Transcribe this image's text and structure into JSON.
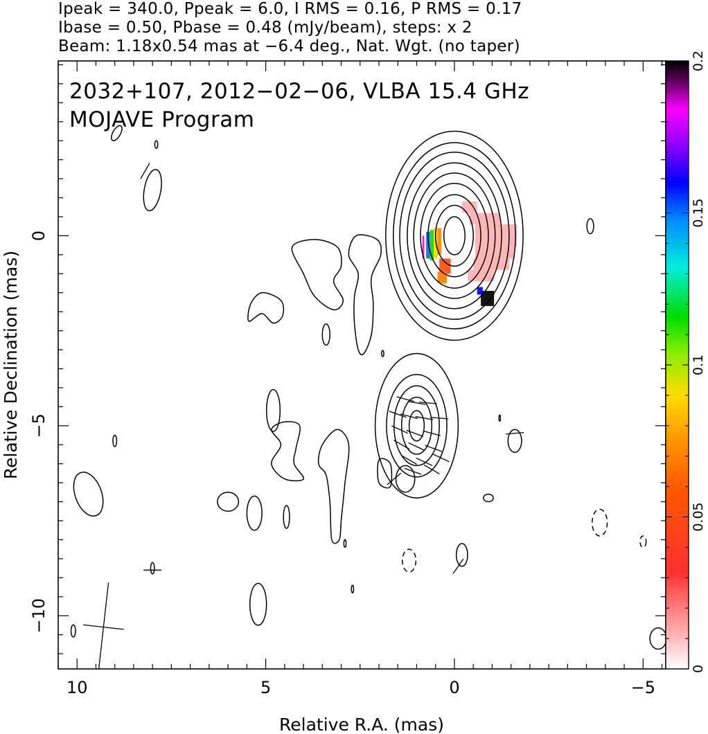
{
  "header": {
    "line1": "Ipeak = 340.0, Ppeak = 6.0, I RMS = 0.16, P RMS = 0.17",
    "line2": "Ibase = 0.50, Pbase = 0.48 (mJy/beam), steps: x 2",
    "line3": "Beam: 1.18x0.54 mas at −6.4 deg., Nat. Wgt. (no taper)"
  },
  "chart_data": {
    "type": "heatmap",
    "title": "2032+107, 2012−02−06, VLBA 15.4 GHz",
    "subtitle": "MOJAVE Program",
    "xlabel": "Relative R.A. (mas)",
    "ylabel": "Relative Declination (mas)",
    "xlim": [
      10.5,
      -5.6
    ],
    "ylim": [
      -11.4,
      4.6
    ],
    "x_ticks": [
      10,
      5,
      0,
      -5
    ],
    "x_tick_labels": [
      "10",
      "5",
      "0",
      "−5"
    ],
    "y_ticks": [
      0,
      -5,
      -10
    ],
    "y_tick_labels": [
      "0",
      "−5",
      "−10"
    ],
    "colorbar": {
      "min": 0,
      "max": 0.2,
      "ticks": [
        0,
        0.05,
        0.1,
        0.15,
        0.2
      ],
      "tick_labels": [
        "0",
        "0.05",
        "0.1",
        "0.15",
        "0.2"
      ]
    },
    "core": {
      "center": [
        0,
        0
      ],
      "contour_radii": [
        [
          0.28,
          0.5
        ],
        [
          0.5,
          0.8
        ],
        [
          0.7,
          1.08
        ],
        [
          0.9,
          1.38
        ],
        [
          1.08,
          1.65
        ],
        [
          1.25,
          1.92
        ],
        [
          1.45,
          2.2
        ],
        [
          1.62,
          2.45
        ],
        [
          1.82,
          2.75
        ]
      ]
    },
    "jet_component": {
      "center": [
        1.0,
        -5.0
      ],
      "contour_radii": [
        [
          0.2,
          0.4
        ],
        [
          0.4,
          0.75
        ],
        [
          0.6,
          1.05
        ],
        [
          0.8,
          1.35
        ],
        [
          1.1,
          1.9
        ]
      ]
    },
    "polarization_map": [
      {
        "x": -0.2,
        "y": 0.9,
        "w": 0.4,
        "h": 0.3,
        "v": 0.012
      },
      {
        "x": -0.4,
        "y": 0.6,
        "w": 0.8,
        "h": 0.3,
        "v": 0.012
      },
      {
        "x": -0.55,
        "y": 0.3,
        "w": 1.1,
        "h": 0.3,
        "v": 0.012
      },
      {
        "x": -0.55,
        "y": 0.0,
        "w": 1.1,
        "h": 0.3,
        "v": 0.012
      },
      {
        "x": -0.55,
        "y": -0.3,
        "w": 1.05,
        "h": 0.3,
        "v": 0.012
      },
      {
        "x": -0.5,
        "y": -0.6,
        "w": 0.95,
        "h": 0.3,
        "v": 0.012
      },
      {
        "x": -0.35,
        "y": -0.9,
        "w": 0.7,
        "h": 0.3,
        "v": 0.012
      },
      {
        "x": 0.45,
        "y": 0.2,
        "w": 0.1,
        "h": 0.7,
        "v": 0.07
      },
      {
        "x": 0.55,
        "y": 0.2,
        "w": 0.1,
        "h": 0.8,
        "v": 0.09
      },
      {
        "x": 0.65,
        "y": 0.15,
        "w": 0.1,
        "h": 0.8,
        "v": 0.115
      },
      {
        "x": 0.75,
        "y": 0.1,
        "w": 0.1,
        "h": 0.7,
        "v": 0.15
      },
      {
        "x": 0.85,
        "y": 0.0,
        "w": 0.05,
        "h": 0.6,
        "v": 0.185
      },
      {
        "x": 0.4,
        "y": -0.6,
        "w": 0.3,
        "h": 0.4,
        "v": 0.05
      },
      {
        "x": 0.45,
        "y": -0.95,
        "w": 0.25,
        "h": 0.3,
        "v": 0.07
      },
      {
        "x": -0.7,
        "y": -1.45,
        "w": 0.35,
        "h": 0.4,
        "v": 0.2
      },
      {
        "x": -0.6,
        "y": -1.35,
        "w": 0.15,
        "h": 0.2,
        "v": 0.16
      }
    ],
    "evpa_ticks": [
      {
        "x": 1.3,
        "y": -4.3,
        "angle": -15
      },
      {
        "x": 1.0,
        "y": -4.4,
        "angle": -10
      },
      {
        "x": 0.7,
        "y": -4.4,
        "angle": -5
      },
      {
        "x": 1.5,
        "y": -4.7,
        "angle": -20
      },
      {
        "x": 1.2,
        "y": -4.75,
        "angle": -15
      },
      {
        "x": 0.8,
        "y": -4.8,
        "angle": -10
      },
      {
        "x": 0.4,
        "y": -4.8,
        "angle": -5
      },
      {
        "x": 1.45,
        "y": -5.1,
        "angle": -25
      },
      {
        "x": 1.05,
        "y": -5.2,
        "angle": -20
      },
      {
        "x": 0.6,
        "y": -5.2,
        "angle": -15
      },
      {
        "x": 1.4,
        "y": -5.5,
        "angle": -30
      },
      {
        "x": 1.0,
        "y": -5.55,
        "angle": -25
      },
      {
        "x": 0.55,
        "y": -5.6,
        "angle": -20
      },
      {
        "x": 1.2,
        "y": -5.9,
        "angle": -30
      },
      {
        "x": 0.8,
        "y": -5.95,
        "angle": -25
      },
      {
        "x": 0.35,
        "y": -5.85,
        "angle": -25
      },
      {
        "x": 1.1,
        "y": -6.2,
        "angle": -20
      },
      {
        "x": 0.6,
        "y": -6.15,
        "angle": -30
      },
      {
        "x": 1.6,
        "y": -6.4,
        "angle": 40
      },
      {
        "x": 8.2,
        "y": 1.7,
        "angle": 60
      },
      {
        "x": -1.6,
        "y": -5.2,
        "angle": 5
      },
      {
        "x": 8.0,
        "y": -8.8,
        "angle": 0
      },
      {
        "x": -0.1,
        "y": -8.7,
        "angle": 55
      }
    ],
    "beam": {
      "x": 9.3,
      "y": -10.3,
      "major": 1.18,
      "minor": 0.54,
      "pa": -6.4
    },
    "noise_contours": [
      {
        "x": 8.0,
        "y": 1.2,
        "rx": 0.22,
        "ry": 0.55,
        "rot": 10,
        "dashed": false
      },
      {
        "x": 8.95,
        "y": 2.7,
        "rx": 0.1,
        "ry": 0.22,
        "rot": 30,
        "dashed": false
      },
      {
        "x": 7.9,
        "y": 2.4,
        "rx": 0.04,
        "ry": 0.1,
        "rot": 0,
        "dashed": false
      },
      {
        "x": -3.6,
        "y": 0.25,
        "rx": 0.09,
        "ry": 0.2,
        "rot": 0,
        "dashed": false
      },
      {
        "x": 3.4,
        "y": -2.6,
        "rx": 0.1,
        "ry": 0.28,
        "rot": 0,
        "dashed": false
      },
      {
        "x": 1.9,
        "y": -3.1,
        "rx": 0.03,
        "ry": 0.08,
        "rot": 0,
        "dashed": false
      },
      {
        "x": 9.0,
        "y": -5.4,
        "rx": 0.05,
        "ry": 0.15,
        "rot": 0,
        "dashed": false
      },
      {
        "x": 9.7,
        "y": -6.8,
        "rx": 0.35,
        "ry": 0.6,
        "rot": -20,
        "dashed": false
      },
      {
        "x": 4.8,
        "y": -4.6,
        "rx": 0.18,
        "ry": 0.55,
        "rot": 0,
        "dashed": false
      },
      {
        "x": 6.0,
        "y": -7.0,
        "rx": 0.28,
        "ry": 0.25,
        "rot": 0,
        "dashed": false
      },
      {
        "x": 5.3,
        "y": -7.3,
        "rx": 0.2,
        "ry": 0.45,
        "rot": 0,
        "dashed": false
      },
      {
        "x": 4.45,
        "y": -7.4,
        "rx": 0.08,
        "ry": 0.3,
        "rot": 0,
        "dashed": false
      },
      {
        "x": 2.9,
        "y": -8.1,
        "rx": 0.03,
        "ry": 0.1,
        "rot": 0,
        "dashed": false
      },
      {
        "x": 8.0,
        "y": -8.75,
        "rx": 0.05,
        "ry": 0.15,
        "rot": 0,
        "dashed": false
      },
      {
        "x": 10.1,
        "y": -10.4,
        "rx": 0.06,
        "ry": 0.16,
        "rot": 0,
        "dashed": false
      },
      {
        "x": 2.7,
        "y": -9.3,
        "rx": 0.03,
        "ry": 0.1,
        "rot": 0,
        "dashed": false
      },
      {
        "x": 5.2,
        "y": -9.7,
        "rx": 0.22,
        "ry": 0.55,
        "rot": 0,
        "dashed": false
      },
      {
        "x": 1.3,
        "y": -6.4,
        "rx": 0.25,
        "ry": 0.35,
        "rot": 0,
        "dashed": false
      },
      {
        "x": -0.2,
        "y": -8.4,
        "rx": 0.15,
        "ry": 0.3,
        "rot": 0,
        "dashed": false
      },
      {
        "x": -1.6,
        "y": -5.4,
        "rx": 0.18,
        "ry": 0.3,
        "rot": 0,
        "dashed": false
      },
      {
        "x": -1.2,
        "y": -4.8,
        "rx": 0.02,
        "ry": 0.08,
        "rot": 0,
        "dashed": false
      },
      {
        "x": -0.9,
        "y": -6.9,
        "rx": 0.13,
        "ry": 0.1,
        "rot": 0,
        "dashed": false
      },
      {
        "x": -5.4,
        "y": -10.6,
        "rx": 0.22,
        "ry": 0.28,
        "rot": 0,
        "dashed": false
      },
      {
        "x": 1.2,
        "y": -8.55,
        "rx": 0.18,
        "ry": 0.3,
        "rot": 0,
        "dashed": true
      },
      {
        "x": -3.85,
        "y": -7.55,
        "rx": 0.2,
        "ry": 0.35,
        "rot": 0,
        "dashed": true
      },
      {
        "x": -5.0,
        "y": -8.05,
        "rx": 0.08,
        "ry": 0.15,
        "rot": 0,
        "dashed": true
      }
    ],
    "irregular_contours": [
      [
        [
          4.0,
          -1.0
        ],
        [
          4.3,
          -0.3
        ],
        [
          3.7,
          -0.1
        ],
        [
          3.1,
          -0.3
        ],
        [
          3.0,
          -0.8
        ],
        [
          3.2,
          -1.2
        ],
        [
          2.95,
          -1.7
        ],
        [
          3.2,
          -1.95
        ],
        [
          3.7,
          -1.6
        ]
      ],
      [
        [
          2.05,
          -0.1
        ],
        [
          2.6,
          0.0
        ],
        [
          2.8,
          -0.5
        ],
        [
          2.55,
          -1.0
        ],
        [
          2.65,
          -1.6
        ],
        [
          2.65,
          -2.3
        ],
        [
          2.55,
          -3.0
        ],
        [
          2.4,
          -3.1
        ],
        [
          2.2,
          -2.6
        ],
        [
          2.15,
          -1.8
        ],
        [
          2.2,
          -1.1
        ],
        [
          1.95,
          -0.5
        ]
      ],
      [
        [
          5.4,
          -1.8
        ],
        [
          5.1,
          -1.5
        ],
        [
          4.6,
          -1.7
        ],
        [
          4.55,
          -2.1
        ],
        [
          4.8,
          -2.3
        ],
        [
          5.1,
          -2.05
        ],
        [
          5.45,
          -2.25
        ]
      ],
      [
        [
          4.2,
          -5.6
        ],
        [
          4.1,
          -5.0
        ],
        [
          4.5,
          -4.9
        ],
        [
          4.85,
          -5.1
        ],
        [
          4.6,
          -5.5
        ],
        [
          4.85,
          -6.0
        ],
        [
          4.5,
          -6.4
        ],
        [
          4.0,
          -6.4
        ],
        [
          4.25,
          -6.0
        ]
      ],
      [
        [
          3.4,
          -6.3
        ],
        [
          3.6,
          -6.0
        ],
        [
          3.5,
          -5.5
        ],
        [
          3.1,
          -5.1
        ],
        [
          2.8,
          -5.5
        ],
        [
          2.9,
          -6.5
        ],
        [
          3.0,
          -7.5
        ],
        [
          3.05,
          -8.0
        ],
        [
          3.25,
          -8.0
        ],
        [
          3.3,
          -7.0
        ]
      ],
      [
        [
          1.7,
          -6.0
        ],
        [
          2.0,
          -5.9
        ],
        [
          2.0,
          -6.5
        ],
        [
          1.7,
          -6.6
        ]
      ]
    ]
  }
}
